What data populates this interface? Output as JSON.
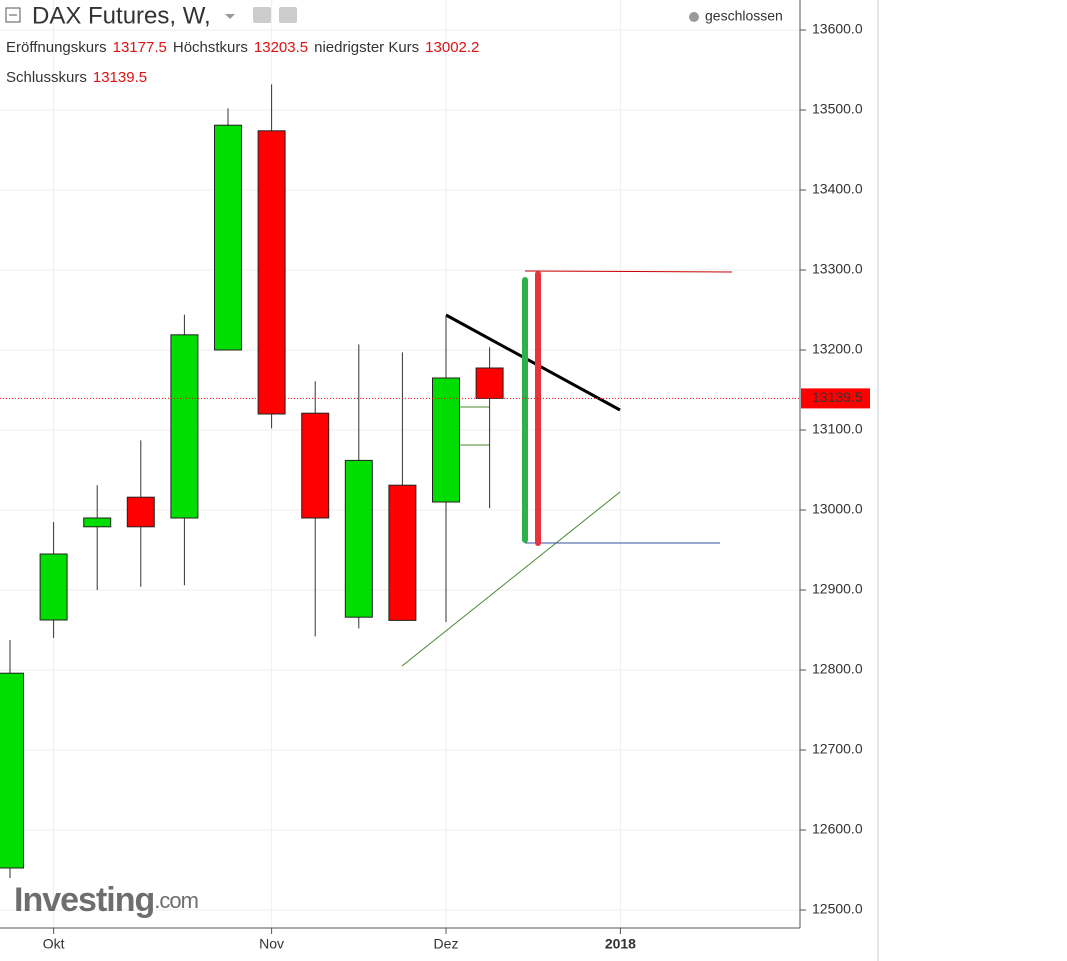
{
  "chart_data": {
    "type": "candlestick",
    "title": "DAX Futures, W,",
    "status": "geschlossen",
    "labels": {
      "open": "Eröffnungskurs",
      "high": "Höchstkurs",
      "low": "niedrigster Kurs",
      "close": "Schlusskurs"
    },
    "categories": [
      null,
      "Okt",
      null,
      null,
      null,
      null,
      "Nov",
      null,
      null,
      null,
      "Dez",
      null,
      null,
      null,
      "2018",
      null,
      null,
      null
    ],
    "open": [
      12552.5,
      12862.5,
      12979,
      13016,
      12990,
      13200,
      13474,
      13121,
      12866,
      13031,
      13010,
      13177.5,
      null,
      null,
      null,
      null,
      null,
      null
    ],
    "high": [
      12837.5,
      12985,
      13031,
      13087,
      13244,
      13502,
      13532,
      13161,
      13207,
      13197,
      13242,
      13203.5,
      null,
      null,
      null,
      null,
      null,
      null
    ],
    "low": [
      12540,
      12840,
      12900,
      12904,
      12906,
      13200,
      13102,
      12842,
      12852,
      12862,
      12860,
      13002.2,
      null,
      null,
      null,
      null,
      null,
      null
    ],
    "close": [
      12796,
      12945,
      12990,
      12979,
      13219,
      13481,
      13120,
      12990,
      13062,
      12862,
      13165,
      13139.5,
      null,
      null,
      null,
      null,
      null,
      null
    ],
    "up_color": "#00dd00",
    "down_color": "#ff0000",
    "ylim": [
      12477.5,
      13637.5
    ],
    "yticks": [
      {
        "value": 12500,
        "label": "12500.0"
      },
      {
        "value": 12600,
        "label": "12600.0"
      },
      {
        "value": 12700,
        "label": "12700.0"
      },
      {
        "value": 12800,
        "label": "12800.0"
      },
      {
        "value": 12900,
        "label": "12900.0"
      },
      {
        "value": 13000,
        "label": "13000.0"
      },
      {
        "value": 13100,
        "label": "13100.0"
      },
      {
        "value": 13200,
        "label": "13200.0"
      },
      {
        "value": 13300,
        "label": "13300.0"
      },
      {
        "value": 13400,
        "label": "13400.0"
      },
      {
        "value": 13500,
        "label": "13500.0"
      },
      {
        "value": 13600,
        "label": "13600.0"
      }
    ],
    "grid": true
  },
  "branding": {
    "name": "Investing",
    "suffix": ".com"
  }
}
